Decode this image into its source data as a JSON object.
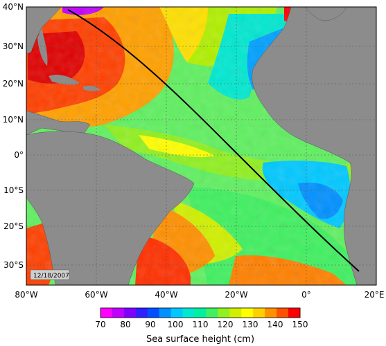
{
  "map": {
    "date_label": "12/18/2007",
    "lon_labels": [
      "80°W",
      "60°W",
      "40°W",
      "20°W",
      "0°",
      "20°E"
    ],
    "lat_labels": [
      "40°N",
      "30°N",
      "20°N",
      "10°N",
      "0°",
      "10°S",
      "20°S",
      "30°S"
    ],
    "colors": {
      "land": "#8c8c8c",
      "shelf": "#bdbdbd",
      "track": "#000000",
      "grid": "#555555"
    }
  },
  "colorbar": {
    "title": "Sea surface height (cm)",
    "tick_labels": [
      "70",
      "80",
      "90",
      "100",
      "110",
      "120",
      "130",
      "140",
      "150"
    ],
    "colors": [
      "#ff00ff",
      "#c000ff",
      "#8000ff",
      "#3020ff",
      "#0050ff",
      "#0090ff",
      "#00c8ff",
      "#00e8d0",
      "#00f0a0",
      "#40f060",
      "#90f020",
      "#d0f000",
      "#ffff00",
      "#ffd000",
      "#ff9000",
      "#ff5000",
      "#ff0000"
    ]
  }
}
